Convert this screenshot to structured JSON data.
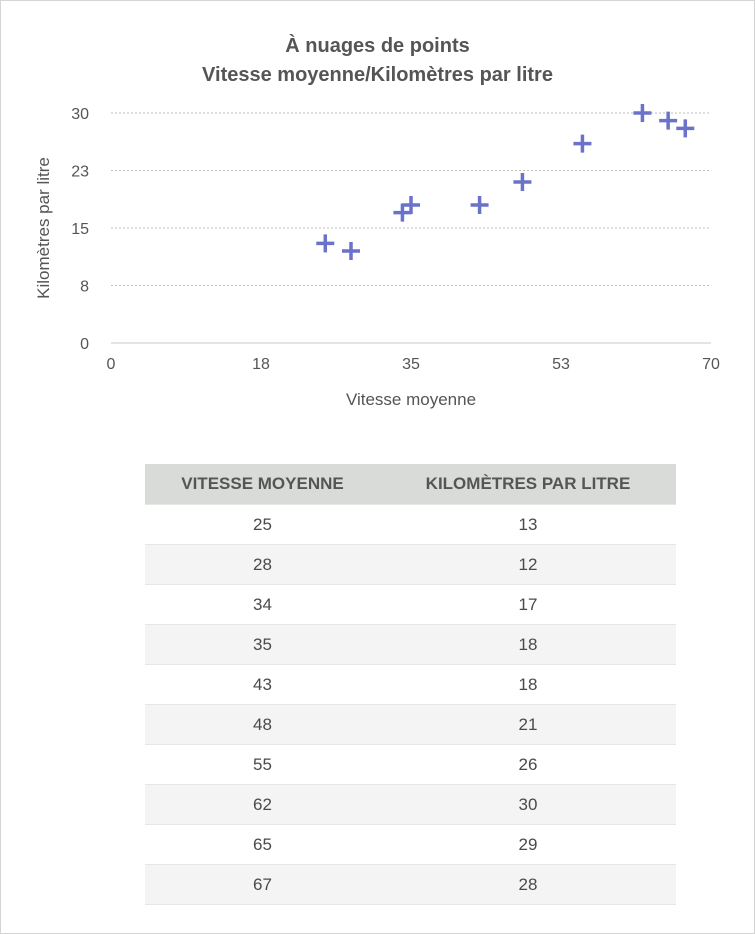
{
  "chart_data": {
    "type": "scatter",
    "title": "À nuages de points",
    "subtitle": "Vitesse moyenne/Kilomètres par litre",
    "xlabel": "Vitesse moyenne",
    "ylabel": "Kilomètres par litre",
    "xlim": [
      0,
      70
    ],
    "ylim": [
      0,
      30
    ],
    "x_ticks": [
      "0",
      "18",
      "35",
      "53",
      "70"
    ],
    "y_ticks": [
      "0",
      "8",
      "15",
      "23",
      "30"
    ],
    "grid": "horizontal-dotted",
    "marker": "plus",
    "color": "#6a73c9",
    "x": [
      25,
      28,
      34,
      35,
      43,
      48,
      55,
      62,
      65,
      67
    ],
    "y": [
      13,
      12,
      17,
      18,
      18,
      21,
      26,
      30,
      29,
      28
    ]
  },
  "table": {
    "headers": [
      "VITESSE MOYENNE",
      "KILOMÈTRES PAR LITRE"
    ],
    "rows": [
      [
        "25",
        "13"
      ],
      [
        "28",
        "12"
      ],
      [
        "34",
        "17"
      ],
      [
        "35",
        "18"
      ],
      [
        "43",
        "18"
      ],
      [
        "48",
        "21"
      ],
      [
        "55",
        "26"
      ],
      [
        "62",
        "30"
      ],
      [
        "65",
        "29"
      ],
      [
        "67",
        "28"
      ]
    ]
  }
}
